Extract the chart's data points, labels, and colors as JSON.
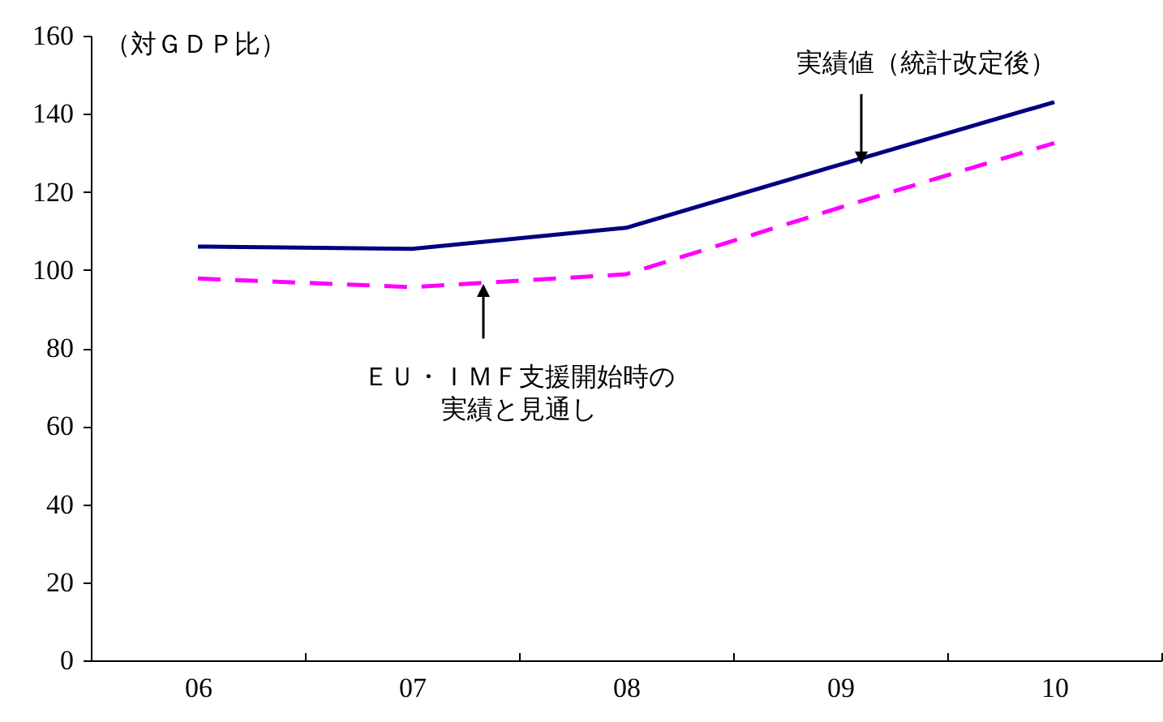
{
  "chart_data": {
    "type": "line",
    "ylabel": "（対ＧＤＰ比）",
    "categories": [
      "06",
      "07",
      "08",
      "09",
      "10"
    ],
    "series": [
      {
        "name": "実績値（統計改定後）",
        "color": "#000080",
        "line_style": "solid",
        "values": [
          106,
          105.4,
          110.8,
          127,
          143
        ]
      },
      {
        "name": "ＥＵ・ＩＭＦ支援開始時の実績と見通し",
        "color": "#ff00ff",
        "line_style": "dashed",
        "values": [
          97.8,
          95.6,
          98.9,
          116,
          132.5
        ]
      }
    ],
    "ylim": [
      0,
      160
    ],
    "yticks": [
      0,
      20,
      40,
      60,
      80,
      100,
      120,
      140,
      160
    ],
    "grid": false,
    "marker": "none"
  }
}
